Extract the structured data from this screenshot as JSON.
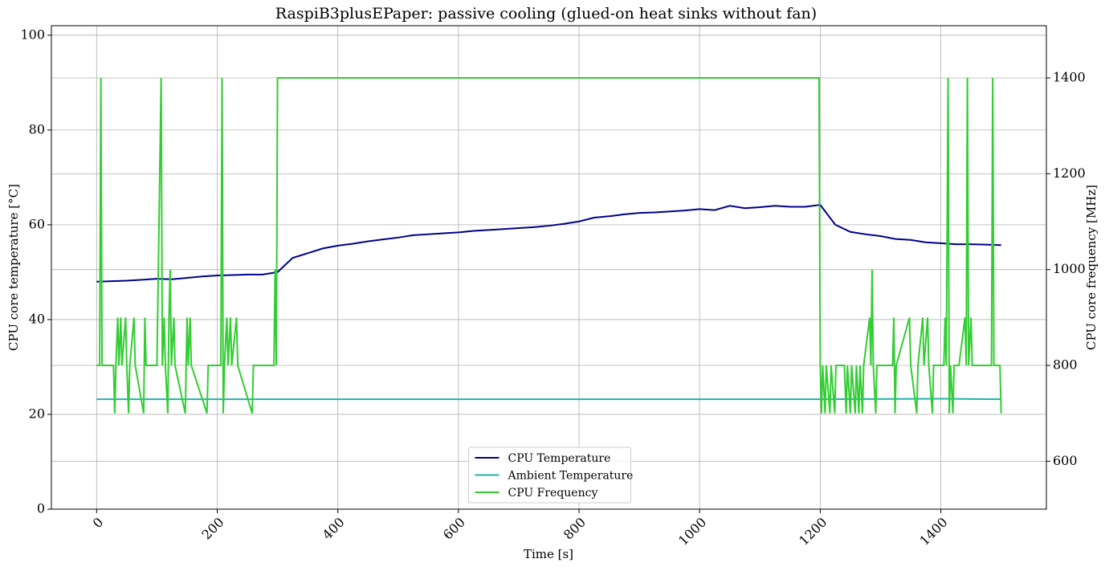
{
  "chart_data": {
    "type": "line",
    "title": "RaspiB3plusEPaper: passive cooling (glued-on heat sinks without fan)",
    "x_label": "Time [s]",
    "y_label": "CPU core temperature [°C]",
    "y2_label": "CPU core frequency [MHz]",
    "xlim": [
      -75,
      1575
    ],
    "xticks": [
      0,
      200,
      400,
      600,
      800,
      1000,
      1200,
      1400
    ],
    "ylim": [
      0,
      102
    ],
    "yticks": [
      0,
      20,
      40,
      60,
      80,
      100
    ],
    "y2lim": [
      500,
      1509
    ],
    "y2ticks": [
      600,
      800,
      1000,
      1200,
      1400
    ],
    "grid": true,
    "legend": "lower center",
    "series": [
      {
        "name": "CPU Temperature",
        "color": "#00008b",
        "x": [
          0,
          25,
          50,
          75,
          100,
          125,
          150,
          175,
          200,
          225,
          250,
          275,
          300,
          325,
          350,
          375,
          400,
          425,
          450,
          475,
          500,
          525,
          550,
          575,
          600,
          625,
          650,
          675,
          700,
          725,
          750,
          775,
          800,
          825,
          850,
          875,
          900,
          925,
          950,
          975,
          1000,
          1025,
          1050,
          1075,
          1100,
          1125,
          1150,
          1175,
          1200,
          1225,
          1250,
          1275,
          1300,
          1325,
          1350,
          1375,
          1400,
          1425,
          1450,
          1475,
          1500
        ],
        "values": [
          48,
          48.1,
          48.2,
          48.4,
          48.6,
          48.5,
          48.8,
          49.1,
          49.3,
          49.4,
          49.5,
          49.5,
          50,
          53,
          54,
          55,
          55.6,
          56,
          56.5,
          56.9,
          57.3,
          57.8,
          58,
          58.2,
          58.4,
          58.7,
          58.9,
          59.1,
          59.3,
          59.5,
          59.8,
          60.2,
          60.7,
          61.5,
          61.8,
          62.2,
          62.5,
          62.6,
          62.8,
          63,
          63.3,
          63.1,
          64,
          63.5,
          63.7,
          64,
          63.8,
          63.8,
          64.2,
          60,
          58.5,
          58,
          57.6,
          57,
          56.8,
          56.3,
          56.1,
          55.9,
          55.9,
          55.8,
          55.7
        ]
      },
      {
        "name": "Ambient Temperature",
        "color": "#20b2aa",
        "x": [
          0,
          1200,
          1400,
          1500
        ],
        "values": [
          23.2,
          23.2,
          23.3,
          23.2
        ]
      },
      {
        "name": "CPU Frequency",
        "color": "#32cd32",
        "axis": "y2",
        "x": [
          0,
          5,
          7,
          9,
          28,
          30,
          32,
          35,
          37,
          40,
          42,
          48,
          50,
          53,
          55,
          62,
          64,
          78,
          80,
          82,
          100,
          107,
          109,
          112,
          114,
          118,
          120,
          122,
          124,
          128,
          130,
          147,
          150,
          152,
          155,
          157,
          183,
          185,
          206,
          208,
          210,
          212,
          216,
          218,
          222,
          224,
          232,
          234,
          258,
          260,
          294,
          296,
          298,
          300,
          1198,
          1200,
          1202,
          1204,
          1208,
          1210,
          1216,
          1218,
          1224,
          1226,
          1240,
          1243,
          1245,
          1250,
          1252,
          1258,
          1260,
          1264,
          1266,
          1270,
          1272,
          1282,
          1284,
          1286,
          1288,
          1292,
          1294,
          1320,
          1322,
          1324,
          1326,
          1348,
          1350,
          1360,
          1362,
          1370,
          1372,
          1378,
          1380,
          1386,
          1388,
          1405,
          1407,
          1409,
          1412,
          1414,
          1416,
          1420,
          1422,
          1430,
          1440,
          1442,
          1444,
          1446,
          1450,
          1452,
          1484,
          1486,
          1488,
          1498,
          1500
        ],
        "values": [
          800,
          800,
          1400,
          800,
          800,
          700,
          800,
          900,
          800,
          900,
          800,
          900,
          800,
          700,
          800,
          900,
          800,
          700,
          900,
          800,
          800,
          1400,
          800,
          900,
          800,
          700,
          900,
          1000,
          800,
          900,
          800,
          700,
          900,
          800,
          900,
          800,
          700,
          800,
          800,
          1400,
          700,
          800,
          900,
          800,
          900,
          800,
          900,
          800,
          700,
          800,
          800,
          1000,
          800,
          1400,
          1400,
          800,
          700,
          800,
          700,
          800,
          700,
          800,
          700,
          800,
          800,
          700,
          800,
          700,
          800,
          700,
          800,
          700,
          800,
          700,
          800,
          900,
          800,
          1000,
          800,
          700,
          800,
          800,
          900,
          700,
          800,
          900,
          800,
          700,
          800,
          900,
          800,
          900,
          800,
          700,
          800,
          800,
          900,
          800,
          1400,
          700,
          800,
          700,
          800,
          800,
          900,
          800,
          1400,
          800,
          900,
          800,
          800,
          1400,
          800,
          800,
          700
        ]
      }
    ]
  }
}
